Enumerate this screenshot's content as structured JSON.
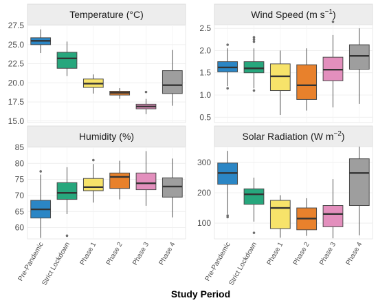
{
  "xlabel": "Study Period",
  "categories": [
    "Pre-Pandemic",
    "Strict Lockdown",
    "Phase 1",
    "Phase 2",
    "Phase 3",
    "Phase 4"
  ],
  "colors": [
    "#2b86c5",
    "#27a77d",
    "#f7e36a",
    "#e8812c",
    "#e38fbd",
    "#9e9e9e"
  ],
  "chart_data": [
    {
      "type": "box",
      "title": "Temperature (°C)",
      "title_main": "Temperature (",
      "title_unit": "°C",
      "title_tail": ")",
      "ylim": [
        14.8,
        27.6
      ],
      "yticks": [
        15.0,
        17.5,
        20.0,
        22.5,
        25.0,
        27.5
      ],
      "ytick_labels": [
        "15.0",
        "17.5",
        "20.0",
        "22.5",
        "25.0",
        "27.5"
      ],
      "series": [
        {
          "category": "Pre-Pandemic",
          "whisker_low": 23.9,
          "q1": 25.0,
          "median": 25.5,
          "q3": 25.9,
          "whisker_high": 27.0,
          "outliers": []
        },
        {
          "category": "Strict Lockdown",
          "whisker_low": 20.9,
          "q1": 21.9,
          "median": 23.2,
          "q3": 24.0,
          "whisker_high": 25.4,
          "outliers": []
        },
        {
          "category": "Phase 1",
          "whisker_low": 18.6,
          "q1": 19.4,
          "median": 19.9,
          "q3": 20.5,
          "whisker_high": 21.1,
          "outliers": []
        },
        {
          "category": "Phase 2",
          "whisker_low": 17.9,
          "q1": 18.4,
          "median": 18.7,
          "q3": 18.9,
          "whisker_high": 19.3,
          "outliers": []
        },
        {
          "category": "Phase 3",
          "whisker_low": 15.9,
          "q1": 16.6,
          "median": 16.9,
          "q3": 17.2,
          "whisker_high": 17.9,
          "outliers": [
            18.8
          ]
        },
        {
          "category": "Phase 4",
          "whisker_low": 17.0,
          "q1": 18.6,
          "median": 19.7,
          "q3": 21.6,
          "whisker_high": 24.3,
          "outliers": []
        }
      ]
    },
    {
      "type": "box",
      "title": "Wind Speed (m s−1)",
      "title_main": "Wind Speed (m s",
      "title_unit": "−1",
      "title_tail": ")",
      "ylim": [
        0.38,
        2.58
      ],
      "yticks": [
        0.5,
        1.0,
        1.5,
        2.0,
        2.5
      ],
      "ytick_labels": [
        "0.5",
        "1.0",
        "1.5",
        "2.0",
        "2.5"
      ],
      "series": [
        {
          "category": "Pre-Pandemic",
          "whisker_low": 1.2,
          "q1": 1.52,
          "median": 1.62,
          "q3": 1.75,
          "whisker_high": 2.05,
          "outliers": [
            2.13,
            1.15
          ]
        },
        {
          "category": "Strict Lockdown",
          "whisker_low": 1.15,
          "q1": 1.5,
          "median": 1.6,
          "q3": 1.75,
          "whisker_high": 2.05,
          "outliers": [
            2.3,
            2.25,
            2.2,
            1.1
          ]
        },
        {
          "category": "Phase 1",
          "whisker_low": 0.55,
          "q1": 1.1,
          "median": 1.42,
          "q3": 1.7,
          "whisker_high": 2.0,
          "outliers": []
        },
        {
          "category": "Phase 2",
          "whisker_low": 0.65,
          "q1": 0.9,
          "median": 1.22,
          "q3": 1.68,
          "whisker_high": 2.05,
          "outliers": []
        },
        {
          "category": "Phase 3",
          "whisker_low": 0.72,
          "q1": 1.32,
          "median": 1.57,
          "q3": 1.85,
          "whisker_high": 2.35,
          "outliers": [
            2.65
          ]
        },
        {
          "category": "Phase 4",
          "whisker_low": 0.8,
          "q1": 1.58,
          "median": 1.88,
          "q3": 2.13,
          "whisker_high": 2.5,
          "outliers": []
        }
      ]
    },
    {
      "type": "box",
      "title": "Humidity (%)",
      "title_main": "Humidity (%)",
      "title_unit": "",
      "title_tail": "",
      "ylim": [
        56.5,
        85.2
      ],
      "yticks": [
        60,
        65,
        70,
        75,
        80,
        85
      ],
      "ytick_labels": [
        "60",
        "65",
        "70",
        "75",
        "80",
        "85"
      ],
      "series": [
        {
          "category": "Pre-Pandemic",
          "whisker_low": 56.8,
          "q1": 63.0,
          "median": 65.7,
          "q3": 68.5,
          "whisker_high": 76.5,
          "outliers": [
            77.5
          ]
        },
        {
          "category": "Strict Lockdown",
          "whisker_low": 64.2,
          "q1": 68.8,
          "median": 70.8,
          "q3": 74.0,
          "whisker_high": 78.8,
          "outliers": [
            57.5
          ]
        },
        {
          "category": "Phase 1",
          "whisker_low": 67.8,
          "q1": 71.5,
          "median": 72.6,
          "q3": 75.3,
          "whisker_high": 79.8,
          "outliers": [
            81.0
          ]
        },
        {
          "category": "Phase 2",
          "whisker_low": 68.8,
          "q1": 72.2,
          "median": 75.8,
          "q3": 77.0,
          "whisker_high": 80.8,
          "outliers": []
        },
        {
          "category": "Phase 3",
          "whisker_low": 66.8,
          "q1": 71.8,
          "median": 73.8,
          "q3": 77.0,
          "whisker_high": 83.8,
          "outliers": []
        },
        {
          "category": "Phase 4",
          "whisker_low": 63.2,
          "q1": 69.5,
          "median": 72.8,
          "q3": 75.5,
          "whisker_high": 81.5,
          "outliers": []
        }
      ]
    },
    {
      "type": "box",
      "title": "Solar Radiation (W m−2)",
      "title_main": "Solar Radiation (W m",
      "title_unit": "−2",
      "title_tail": ")",
      "ylim": [
        48,
        352
      ],
      "yticks": [
        100,
        200,
        300
      ],
      "ytick_labels": [
        "100",
        "200",
        "300"
      ],
      "series": [
        {
          "category": "Pre-Pandemic",
          "whisker_low": 130,
          "q1": 228,
          "median": 265,
          "q3": 298,
          "whisker_high": 338,
          "outliers": [
            125,
            120
          ]
        },
        {
          "category": "Strict Lockdown",
          "whisker_low": 105,
          "q1": 162,
          "median": 195,
          "q3": 213,
          "whisker_high": 250,
          "outliers": [
            68
          ]
        },
        {
          "category": "Phase 1",
          "whisker_low": 52,
          "q1": 82,
          "median": 150,
          "q3": 175,
          "whisker_high": 192,
          "outliers": []
        },
        {
          "category": "Phase 2",
          "whisker_low": 58,
          "q1": 78,
          "median": 115,
          "q3": 150,
          "whisker_high": 182,
          "outliers": []
        },
        {
          "category": "Phase 3",
          "whisker_low": 50,
          "q1": 88,
          "median": 130,
          "q3": 158,
          "whisker_high": 245,
          "outliers": []
        },
        {
          "category": "Phase 4",
          "whisker_low": 60,
          "q1": 158,
          "median": 265,
          "q3": 312,
          "whisker_high": 352,
          "outliers": []
        }
      ]
    }
  ]
}
